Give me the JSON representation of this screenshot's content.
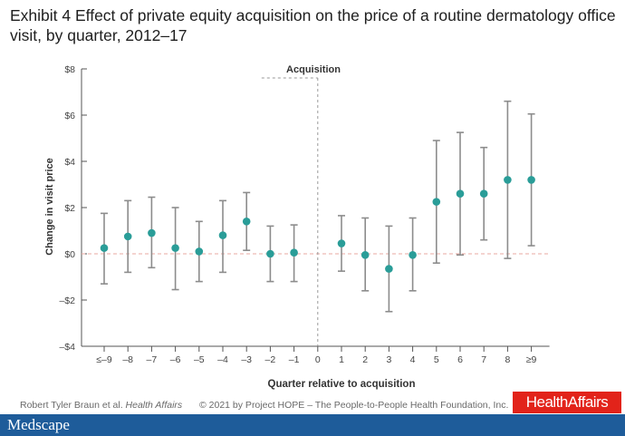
{
  "title": "Exhibit 4 Effect of private equity acquisition on the price of a routine dermatology office visit, by quarter, 2012–17",
  "chart_data": {
    "type": "scatter",
    "annotation": "Acquisition",
    "xlabel": "Quarter relative to acquisition",
    "ylabel": "Change in visit price",
    "ylim": [
      -4,
      8
    ],
    "yticks": [
      {
        "v": -4,
        "label": "–$4"
      },
      {
        "v": -2,
        "label": "–$2"
      },
      {
        "v": 0,
        "label": "$0"
      },
      {
        "v": 2,
        "label": "$2"
      },
      {
        "v": 4,
        "label": "$4"
      },
      {
        "v": 6,
        "label": "$6"
      },
      {
        "v": 8,
        "label": "$8"
      }
    ],
    "categories": [
      "≤–9",
      "–8",
      "–7",
      "–6",
      "–5",
      "–4",
      "–3",
      "–2",
      "–1",
      "0",
      "1",
      "2",
      "3",
      "4",
      "5",
      "6",
      "7",
      "8",
      "≥9"
    ],
    "points": [
      {
        "x": "≤–9",
        "y": 0.25,
        "lo": -1.3,
        "hi": 1.75
      },
      {
        "x": "–8",
        "y": 0.75,
        "lo": -0.8,
        "hi": 2.3
      },
      {
        "x": "–7",
        "y": 0.9,
        "lo": -0.6,
        "hi": 2.45
      },
      {
        "x": "–6",
        "y": 0.25,
        "lo": -1.55,
        "hi": 2.0
      },
      {
        "x": "–5",
        "y": 0.1,
        "lo": -1.2,
        "hi": 1.4
      },
      {
        "x": "–4",
        "y": 0.8,
        "lo": -0.8,
        "hi": 2.3
      },
      {
        "x": "–3",
        "y": 1.4,
        "lo": 0.15,
        "hi": 2.65
      },
      {
        "x": "–2",
        "y": 0.0,
        "lo": -1.2,
        "hi": 1.2
      },
      {
        "x": "–1",
        "y": 0.05,
        "lo": -1.2,
        "hi": 1.25
      },
      {
        "x": "1",
        "y": 0.45,
        "lo": -0.75,
        "hi": 1.65
      },
      {
        "x": "2",
        "y": -0.05,
        "lo": -1.6,
        "hi": 1.55
      },
      {
        "x": "3",
        "y": -0.65,
        "lo": -2.5,
        "hi": 1.2
      },
      {
        "x": "4",
        "y": -0.05,
        "lo": -1.6,
        "hi": 1.55
      },
      {
        "x": "5",
        "y": 2.25,
        "lo": -0.4,
        "hi": 4.9
      },
      {
        "x": "6",
        "y": 2.6,
        "lo": -0.05,
        "hi": 5.25
      },
      {
        "x": "7",
        "y": 2.6,
        "lo": 0.6,
        "hi": 4.6
      },
      {
        "x": "8",
        "y": 3.2,
        "lo": -0.2,
        "hi": 6.6
      },
      {
        "x": "≥9",
        "y": 3.2,
        "lo": 0.35,
        "hi": 6.05
      }
    ]
  },
  "footer": {
    "credit_author": "Robert Tyler Braun et al.",
    "credit_journal": "Health Affairs",
    "copyright": "© 2021 by Project HOPE – The People-to-People Health Foundation, Inc.",
    "brand": "HealthAffairs"
  },
  "bottom_bar": {
    "logo": "Medscape"
  },
  "colors": {
    "marker": "#2a9d98",
    "whisker": "#8c8c8c",
    "zero_line": "#e8a8a0",
    "brand": "#e2231a",
    "bar": "#1e5c9a"
  }
}
